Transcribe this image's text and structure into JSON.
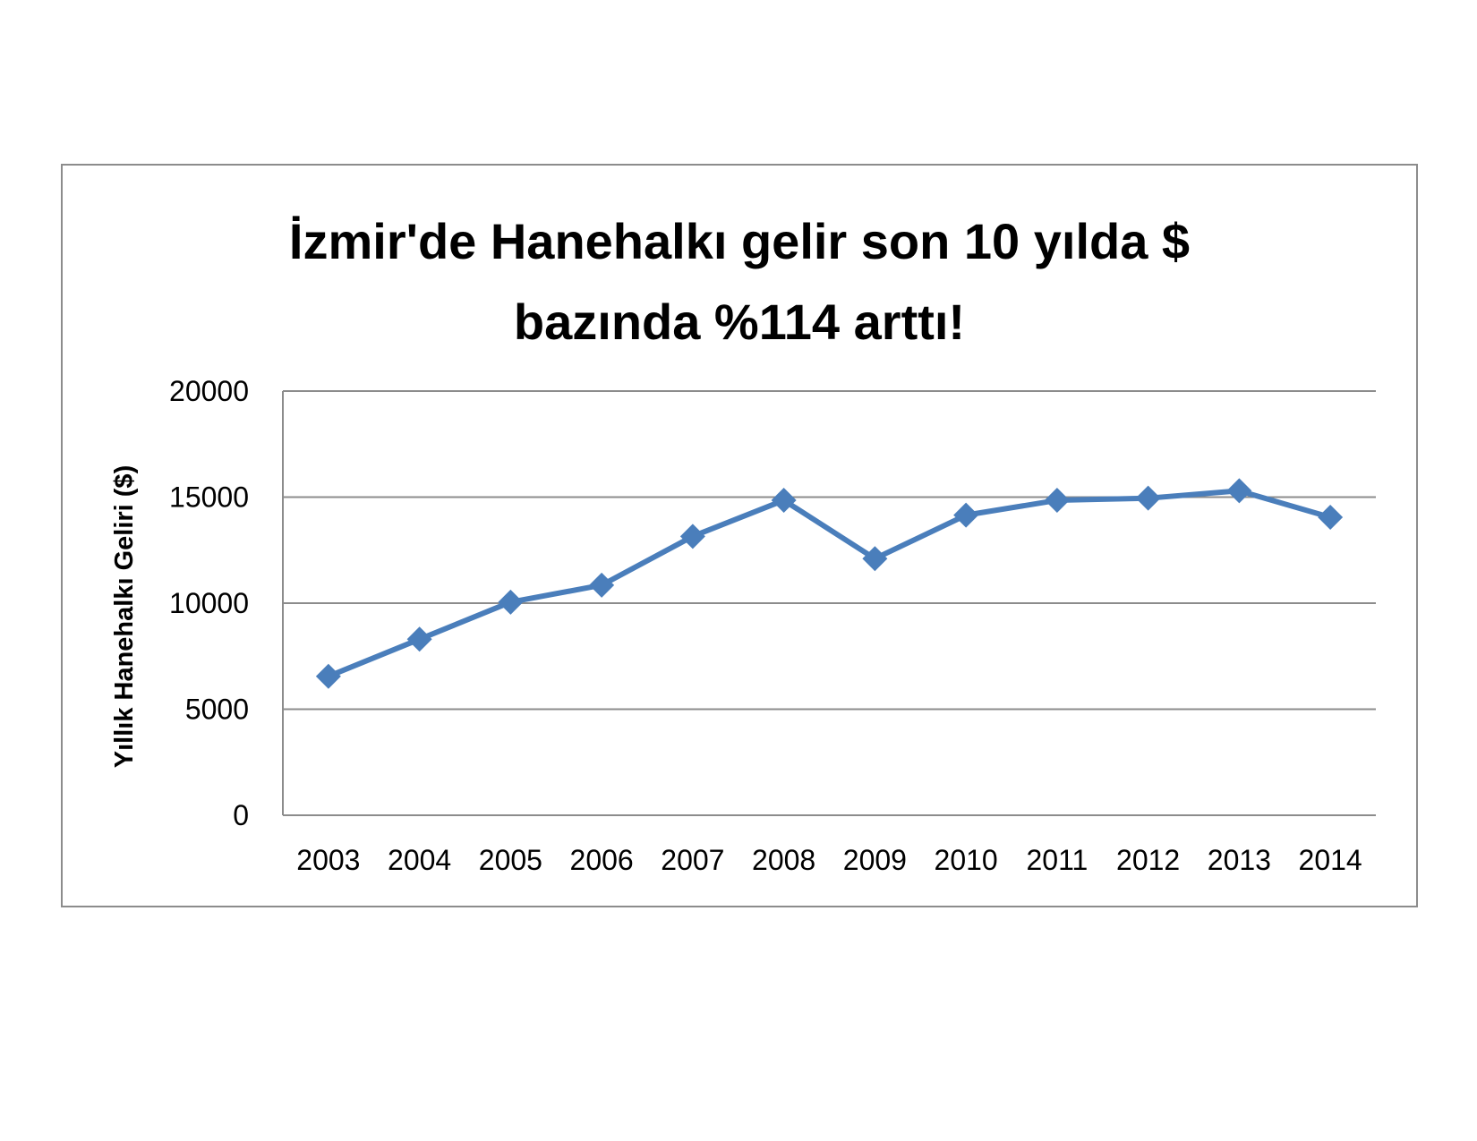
{
  "chart_data": {
    "type": "line",
    "title_lines": [
      "İzmir'de Hanehalkı gelir son 10 yılda $",
      "bazında %114 arttı!"
    ],
    "xlabel": "",
    "ylabel": "Yıllık Hanehalkı Geliri ($)",
    "categories": [
      "2003",
      "2004",
      "2005",
      "2006",
      "2007",
      "2008",
      "2009",
      "2010",
      "2011",
      "2012",
      "2013",
      "2014"
    ],
    "series": [
      {
        "values": [
          6550,
          8300,
          10050,
          10850,
          13150,
          14850,
          12100,
          14150,
          14850,
          14950,
          15300,
          14050
        ]
      }
    ],
    "ylim": [
      0,
      20000
    ],
    "yticks": [
      "0",
      "5000",
      "10000",
      "15000",
      "20000"
    ],
    "grid": true,
    "legend": "none",
    "colors": {
      "series": "#4a7ebb",
      "grid": "#8c8c8c",
      "frame": "#8c8c8c"
    }
  }
}
